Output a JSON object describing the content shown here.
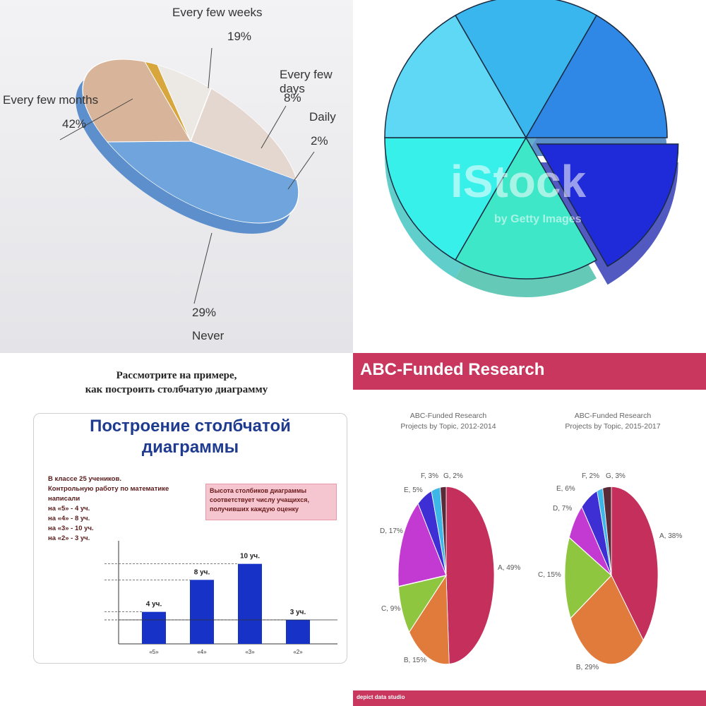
{
  "chart_data": [
    {
      "type": "pie",
      "slices": [
        {
          "label": "Every few months",
          "value": 42,
          "color": "#6fa4dc"
        },
        {
          "label": "Every few weeks",
          "value": 19,
          "color": "#e4d7cf"
        },
        {
          "label": "Every few days",
          "value": 8,
          "color": "#ece8e4"
        },
        {
          "label": "Daily",
          "value": 2,
          "color": "#d7a63c"
        },
        {
          "label": "Never",
          "value": 29,
          "color": "#d8b59a"
        }
      ]
    },
    {
      "type": "pie",
      "slices": [
        {
          "value": 1,
          "color": "#39b6ee"
        },
        {
          "value": 1,
          "color": "#2f87e6"
        },
        {
          "value": 1,
          "color": "#1f2bd8"
        },
        {
          "value": 1,
          "color": "#3de7c8"
        },
        {
          "value": 1,
          "color": "#36f0e9"
        },
        {
          "value": 1,
          "color": "#5fd8f5"
        }
      ],
      "watermark": "iStock",
      "watermark_sub": "by Getty Images"
    },
    {
      "type": "bar",
      "categories": [
        "«5»",
        "«4»",
        "«3»",
        "«2»"
      ],
      "values": [
        4,
        8,
        10,
        3
      ],
      "value_labels": [
        "4 уч.",
        "8 уч.",
        "10 уч.",
        "3 уч."
      ],
      "color": "#1632c7",
      "ylim": [
        0,
        12
      ]
    },
    {
      "type": "pie",
      "title": "ABC-Funded Research",
      "subtitle": "Projects by Topic, 2012-2014",
      "slices": [
        {
          "label": "A, 49%",
          "value": 49,
          "color": "#c42f5c"
        },
        {
          "label": "B, 15%",
          "value": 15,
          "color": "#e07b3c"
        },
        {
          "label": "C, 9%",
          "value": 9,
          "color": "#8ec63f"
        },
        {
          "label": "D, 17%",
          "value": 17,
          "color": "#c33ad3"
        },
        {
          "label": "E, 5%",
          "value": 5,
          "color": "#3d2fd4"
        },
        {
          "label": "F, 3%",
          "value": 3,
          "color": "#3fb6e8"
        },
        {
          "label": "G, 2%",
          "value": 2,
          "color": "#5a2a38"
        }
      ]
    },
    {
      "type": "pie",
      "title": "ABC-Funded Research",
      "subtitle": "Projects by Topic, 2015-2017",
      "slices": [
        {
          "label": "A, 38%",
          "value": 38,
          "color": "#c42f5c"
        },
        {
          "label": "B, 29%",
          "value": 29,
          "color": "#e07b3c"
        },
        {
          "label": "C, 15%",
          "value": 15,
          "color": "#8ec63f"
        },
        {
          "label": "D, 7%",
          "value": 7,
          "color": "#c33ad3"
        },
        {
          "label": "E, 6%",
          "value": 6,
          "color": "#3d2fd4"
        },
        {
          "label": "F, 2%",
          "value": 2,
          "color": "#3fb6e8"
        },
        {
          "label": "G, 3%",
          "value": 3,
          "color": "#5a2a38"
        }
      ]
    }
  ],
  "q1": {
    "labels": {
      "weeks": "Every few weeks",
      "weeks_pct": "19%",
      "days": "Every few days",
      "days_pct": "8%",
      "daily": "Daily",
      "daily_pct": "2%",
      "months": "Every few months",
      "months_pct": "42%",
      "never_pct": "29%",
      "never": "Never"
    }
  },
  "q3": {
    "top_title_1": "Рассмотрите на примере,",
    "top_title_2": "как построить столбчатую диаграмму",
    "card_title_1": "Построение столбчатой",
    "card_title_2": "диаграммы",
    "text_lines": [
      "В классе 25 учеников.",
      "Контрольную работу по математике",
      "написали",
      "на «5» - 4 уч.",
      "на «4» - 8 уч.",
      "на «3» - 10 уч.",
      "на «2» - 3 уч."
    ],
    "note": "Высота столбиков диаграммы соответствует числу учащихся, получивших каждую оценку"
  },
  "q4": {
    "header": "ABC-Funded Research",
    "footer": "depict data studio"
  }
}
